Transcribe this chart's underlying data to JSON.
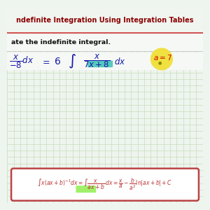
{
  "bg_color": "#eef4ee",
  "grid_color": "#c0d8b0",
  "title_bg_color": "#dde8dd",
  "title_text": "ndefinite Integration Using Integration Tables",
  "title_color": "#8B0000",
  "subtitle_text": "ate the indefinite integral.",
  "subtitle_color": "#111111",
  "handwrite_color": "#1a1aaa",
  "handwrite_color2": "#cc0000",
  "highlight_yellow": "#f0e040",
  "highlight_teal": "#20bbaa",
  "highlight_green": "#88ee44",
  "box_stroke": "#bb4444",
  "formula_color": "#bb3333",
  "white": "#ffffff",
  "top_bar_color": "#cc3333",
  "grid_step": 0.1
}
